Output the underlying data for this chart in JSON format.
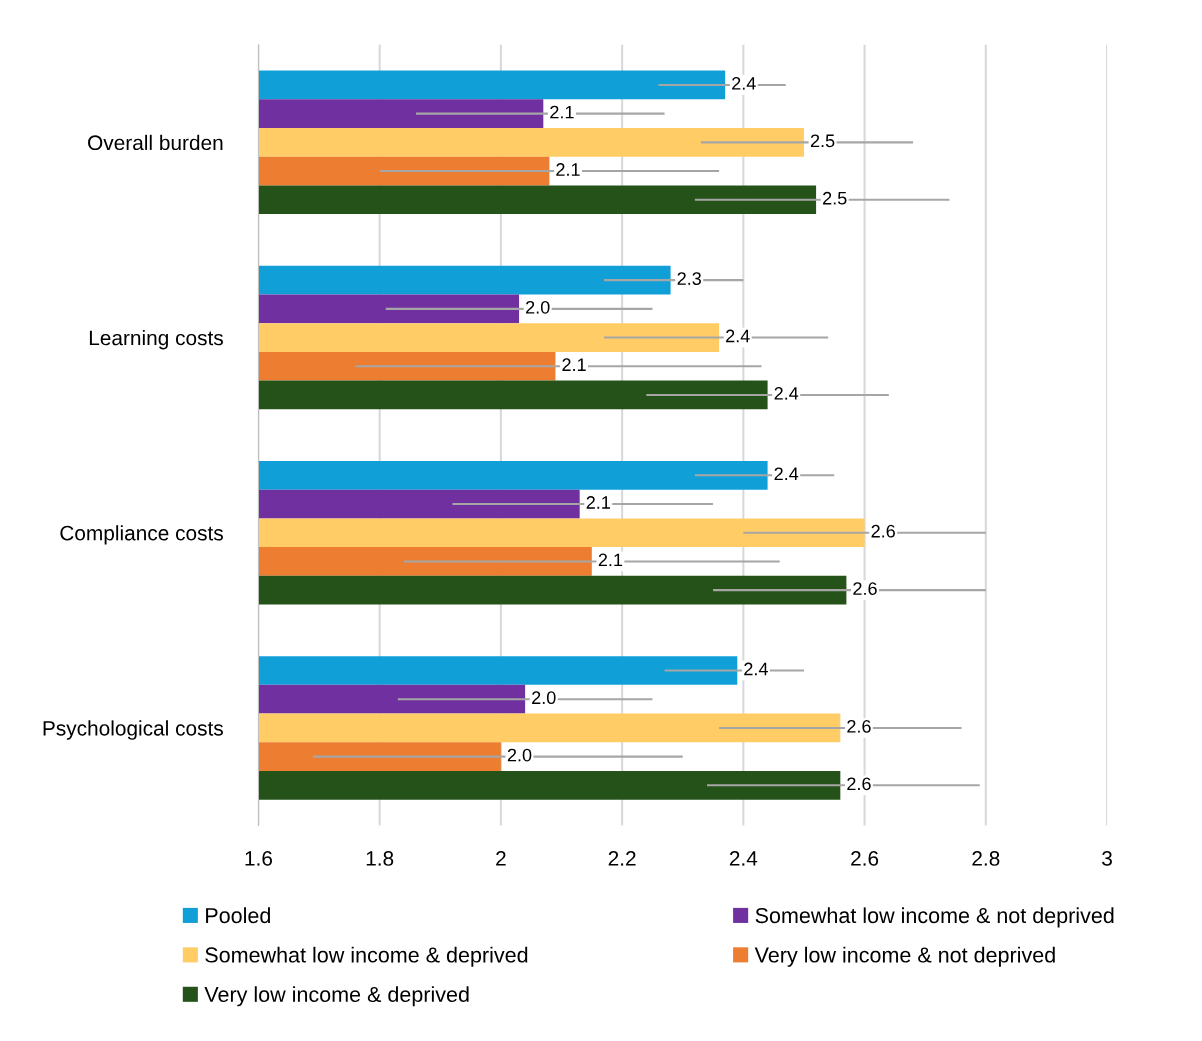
{
  "chart_data": {
    "type": "bar",
    "orientation": "horizontal",
    "categories": [
      "Overall burden",
      "Learning costs",
      "Compliance costs",
      "Psychological costs"
    ],
    "series": [
      {
        "name": "Pooled",
        "color": "#119fd8",
        "values": [
          2.37,
          2.28,
          2.44,
          2.39
        ],
        "errors": [
          [
            2.26,
            2.47
          ],
          [
            2.17,
            2.4
          ],
          [
            2.32,
            2.55
          ],
          [
            2.27,
            2.5
          ]
        ],
        "value_labels": [
          "2.4",
          "2.3",
          "2.4",
          "2.4"
        ]
      },
      {
        "name": "Somewhat low income & not deprived",
        "color": "#7030a0",
        "values": [
          2.07,
          2.03,
          2.13,
          2.04
        ],
        "errors": [
          [
            1.86,
            2.27
          ],
          [
            1.81,
            2.25
          ],
          [
            1.92,
            2.35
          ],
          [
            1.83,
            2.25
          ]
        ],
        "value_labels": [
          "2.1",
          "2.0",
          "2.1",
          "2.0"
        ]
      },
      {
        "name": "Somewhat low income & deprived",
        "color": "#ffcc66",
        "values": [
          2.5,
          2.36,
          2.6,
          2.56
        ],
        "errors": [
          [
            2.33,
            2.68
          ],
          [
            2.17,
            2.54
          ],
          [
            2.4,
            2.8
          ],
          [
            2.36,
            2.76
          ]
        ],
        "value_labels": [
          "2.5",
          "2.4",
          "2.6",
          "2.6"
        ]
      },
      {
        "name": "Very low income & not deprived",
        "color": "#ed7d31",
        "values": [
          2.08,
          2.09,
          2.15,
          2.0
        ],
        "errors": [
          [
            1.8,
            2.36
          ],
          [
            1.76,
            2.43
          ],
          [
            1.84,
            2.46
          ],
          [
            1.69,
            2.3
          ]
        ],
        "value_labels": [
          "2.1",
          "2.1",
          "2.1",
          "2.0"
        ]
      },
      {
        "name": "Very low income & deprived",
        "color": "#255219",
        "values": [
          2.52,
          2.44,
          2.57,
          2.56
        ],
        "errors": [
          [
            2.32,
            2.74
          ],
          [
            2.24,
            2.64
          ],
          [
            2.35,
            2.8
          ],
          [
            2.34,
            2.79
          ]
        ],
        "value_labels": [
          "2.5",
          "2.4",
          "2.6",
          "2.6"
        ]
      }
    ],
    "xlim": [
      1.6,
      3.0
    ],
    "xticks": [
      1.6,
      1.8,
      2,
      2.2,
      2.4,
      2.6,
      2.8,
      3
    ],
    "grid": "x",
    "legend": "bottom"
  }
}
